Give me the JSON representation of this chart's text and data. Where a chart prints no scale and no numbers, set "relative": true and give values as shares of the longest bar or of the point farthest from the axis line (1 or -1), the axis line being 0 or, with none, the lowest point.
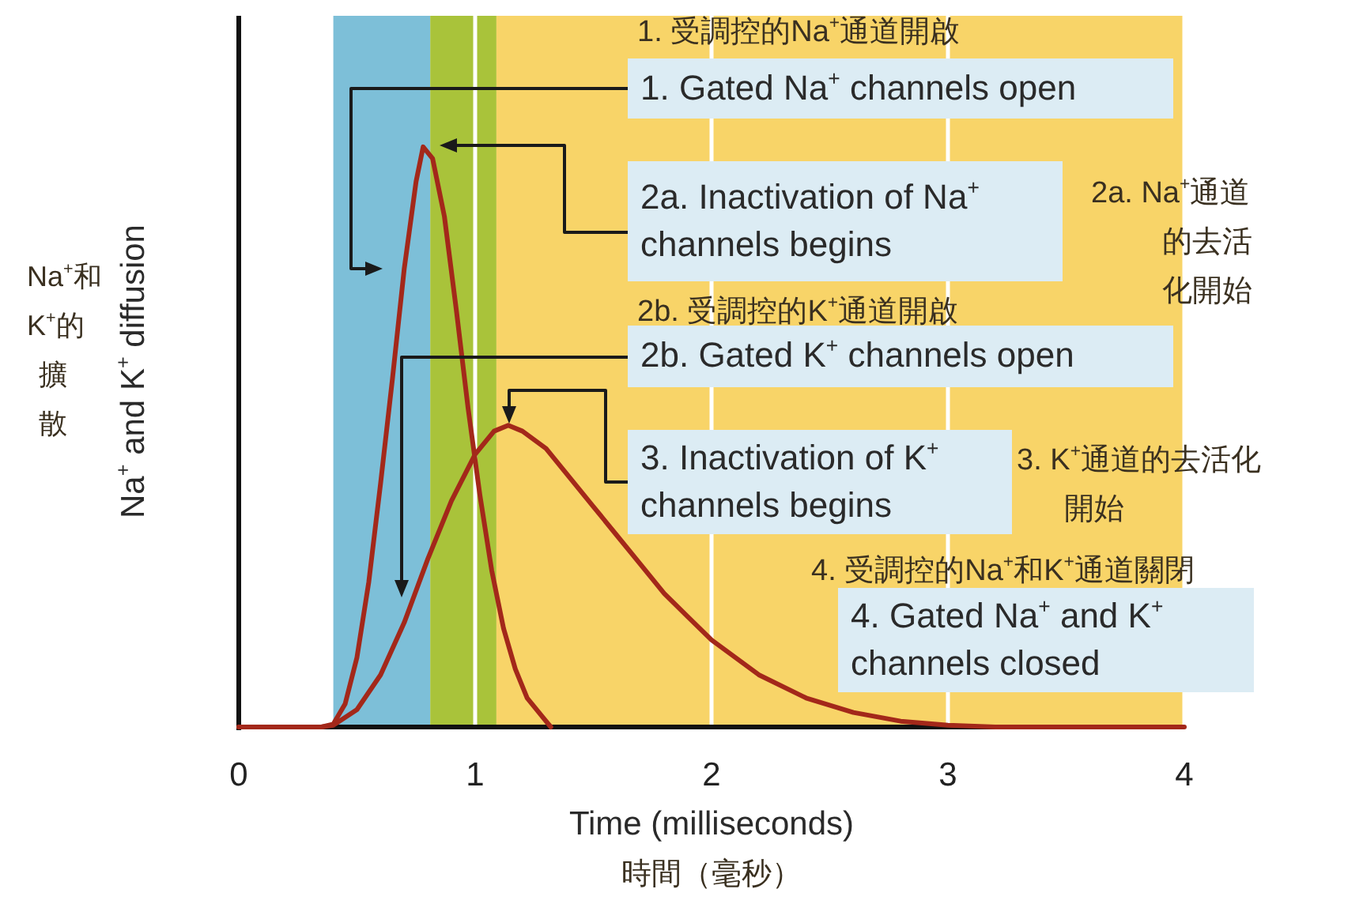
{
  "chart_data": {
    "type": "line",
    "relative": true,
    "xlabel": "Time (milliseconds)",
    "ylabel": "Na$^{+}$ and K$^{+}$ diffusion",
    "xlim": [
      0,
      4
    ],
    "xticks": [
      0,
      1,
      2,
      3,
      4
    ],
    "tick_labels": "x",
    "grid": "x",
    "series": [
      {
        "color": "#a3281a",
        "x": [
          0,
          0.35,
          0.4,
          0.45,
          0.5,
          0.55,
          0.6,
          0.65,
          0.7,
          0.75,
          0.78,
          0.82,
          0.87,
          0.92,
          0.97,
          1.02,
          1.07,
          1.12,
          1.17,
          1.22,
          1.28,
          1.32
        ],
        "values": [
          0,
          0,
          0.005,
          0.04,
          0.12,
          0.25,
          0.42,
          0.6,
          0.79,
          0.94,
          1,
          0.98,
          0.88,
          0.72,
          0.55,
          0.4,
          0.27,
          0.17,
          0.1,
          0.05,
          0.02,
          0
        ]
      },
      {
        "color": "#a3281a",
        "x": [
          0,
          0.35,
          0.4,
          0.5,
          0.6,
          0.7,
          0.8,
          0.9,
          1.0,
          1.08,
          1.14,
          1.2,
          1.3,
          1.4,
          1.5,
          1.6,
          1.7,
          1.8,
          1.9,
          2.0,
          2.2,
          2.4,
          2.6,
          2.8,
          3.0,
          3.2,
          4
        ],
        "values": [
          0,
          0,
          0.003,
          0.03,
          0.09,
          0.18,
          0.29,
          0.39,
          0.47,
          0.51,
          0.52,
          0.51,
          0.48,
          0.43,
          0.38,
          0.33,
          0.28,
          0.23,
          0.19,
          0.15,
          0.09,
          0.05,
          0.025,
          0.01,
          0.003,
          0,
          0
        ]
      }
    ],
    "bands": [
      {
        "axis": "x",
        "from": 0.4,
        "to": 0.81,
        "color": "#7dbfd8"
      },
      {
        "axis": "x",
        "from": 0.81,
        "to": 1.09,
        "color": "#a9c33a"
      },
      {
        "axis": "x",
        "from": 1.09,
        "to": 4,
        "color": "#f8d468"
      }
    ],
    "annotations": [
      "1. 受調控的Na$^{+}$通道開啟",
      "1. Gated Na$^{+}$ channels open",
      "2a. Inactivation of Na$^{+}$ channels begins",
      "2a. Na$^{+}$通道的去活化開始",
      "2b. 受調控的K$^{+}$通道開啟",
      "2b. Gated K$^{+}$ channels open",
      "3. Inactivation of K$^{+}$ channels begins",
      "3. K$^{+}$通道的去活化開始",
      "4. 受調控的Na$^{+}$和K$^{+}$通道關閉",
      "4. Gated Na$^{+}$ and K$^{+}$ channels closed",
      "Na$^{+}$和K$^{+}$的擴散",
      "時間（毫秒）"
    ]
  }
}
